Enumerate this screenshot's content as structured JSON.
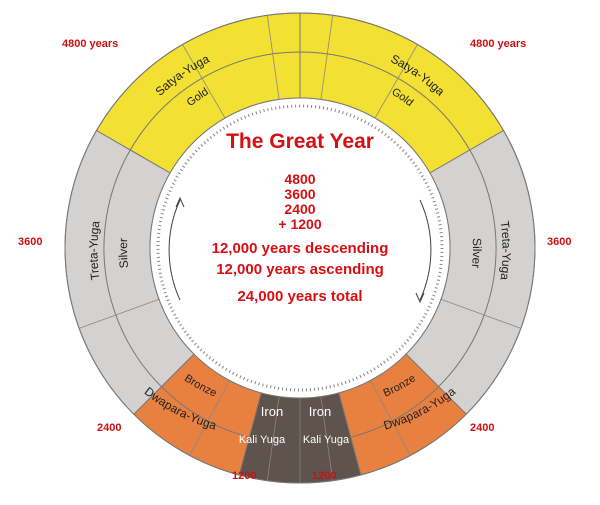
{
  "title": "The Great Year",
  "sum_lines": [
    "4800",
    "3600",
    "2400",
    "+ 1200"
  ],
  "summary_lines": [
    "12,000 years descending",
    "12,000 years ascending",
    "24,000 years total"
  ],
  "outer_labels": {
    "satya_left": "4800 years",
    "satya_right": "4800 years",
    "treta_left": "3600",
    "treta_right": "3600",
    "dwapara_left": "2400",
    "dwapara_right": "2400",
    "kali_left": "1200",
    "kali_right": "1200"
  },
  "ages": {
    "satya": {
      "name": "Satya-Yuga",
      "metal": "Gold",
      "color": "#f2e032"
    },
    "treta": {
      "name": "Treta-Yuga",
      "metal": "Silver",
      "color": "#d4d2d0"
    },
    "dwapara": {
      "name": "Dwapara-Yuga",
      "metal": "Bronze",
      "color": "#e88040"
    },
    "kali": {
      "name": "Kali Yuga",
      "metal": "Iron",
      "color": "#5e534d"
    }
  },
  "colors": {
    "title": "#d80f12",
    "outer_label": "#cc1111"
  }
}
